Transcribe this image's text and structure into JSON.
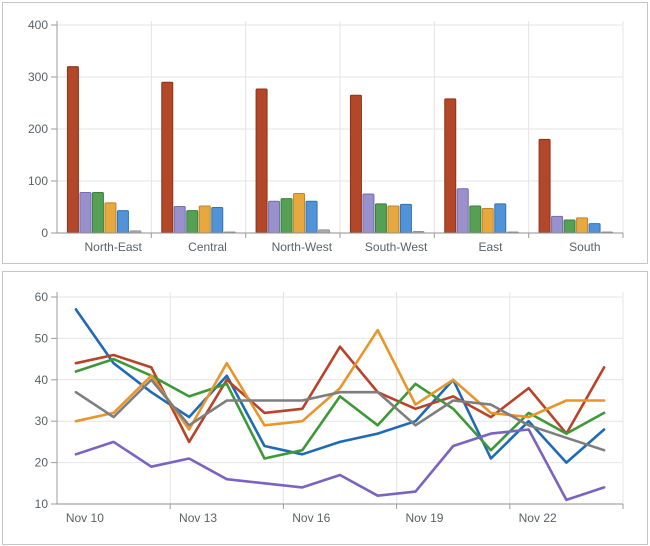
{
  "chart_data": [
    {
      "id": "bar-chart",
      "type": "bar",
      "title": "",
      "xlabel": "",
      "ylabel": "",
      "ylim": [
        0,
        400
      ],
      "yticks": [
        0,
        100,
        200,
        300,
        400
      ],
      "grid": true,
      "legend": "none",
      "categories": [
        "North-East",
        "Central",
        "North-West",
        "South-West",
        "East",
        "South"
      ],
      "series": [
        {
          "name": "red",
          "color": "#b24729",
          "border": "#8e3419",
          "values": [
            320,
            290,
            277,
            265,
            258,
            180
          ]
        },
        {
          "name": "purple",
          "color": "#9991cb",
          "border": "#746bb4",
          "values": [
            78,
            51,
            61,
            75,
            85,
            32
          ]
        },
        {
          "name": "green",
          "color": "#55a054",
          "border": "#398038",
          "values": [
            78,
            43,
            66,
            56,
            52,
            25
          ]
        },
        {
          "name": "orange",
          "color": "#e7a93f",
          "border": "#c08322",
          "values": [
            58,
            52,
            76,
            52,
            47,
            29
          ]
        },
        {
          "name": "blue",
          "color": "#5193d6",
          "border": "#2e72bc",
          "values": [
            43,
            49,
            61,
            55,
            56,
            18
          ]
        },
        {
          "name": "gray",
          "color": "#adadad",
          "border": "#939393",
          "values": [
            4,
            2,
            6,
            3,
            2,
            2
          ]
        }
      ]
    },
    {
      "id": "line-chart",
      "type": "line",
      "title": "",
      "xlabel": "",
      "ylabel": "",
      "ylim": [
        10,
        60
      ],
      "yticks": [
        10,
        20,
        30,
        40,
        50,
        60
      ],
      "grid": true,
      "legend": "none",
      "num_points": 15,
      "label_every": 3,
      "x": [
        "Nov 10",
        "Nov 11",
        "Nov 12",
        "Nov 13",
        "Nov 14",
        "Nov 15",
        "Nov 16",
        "Nov 17",
        "Nov 18",
        "Nov 19",
        "Nov 20",
        "Nov 21",
        "Nov 22",
        "Nov 23",
        "Nov 24"
      ],
      "x_tick_labels": [
        "Nov 10",
        "Nov 13",
        "Nov 16",
        "Nov 19",
        "Nov 22"
      ],
      "series": [
        {
          "name": "blue",
          "color": "#1e6ab6",
          "values": [
            57,
            44,
            37,
            31,
            41,
            24,
            22,
            25,
            27,
            30,
            40,
            21,
            30,
            20,
            28
          ]
        },
        {
          "name": "red",
          "color": "#b8432a",
          "values": [
            44,
            46,
            43,
            25,
            40,
            32,
            33,
            48,
            37,
            33,
            36,
            31,
            38,
            27,
            43
          ]
        },
        {
          "name": "green",
          "color": "#3d9938",
          "values": [
            42,
            45,
            41,
            36,
            39,
            21,
            23,
            36,
            29,
            39,
            33,
            23,
            32,
            27,
            32
          ]
        },
        {
          "name": "orange",
          "color": "#e6962b",
          "values": [
            30,
            32,
            41,
            28,
            44,
            29,
            30,
            38,
            52,
            34,
            40,
            32,
            31,
            35,
            35
          ]
        },
        {
          "name": "gray",
          "color": "#7e7e7e",
          "values": [
            37,
            31,
            40,
            29,
            35,
            35,
            35,
            37,
            37,
            29,
            35,
            34,
            29,
            26,
            23
          ]
        },
        {
          "name": "purple",
          "color": "#7a63c1",
          "values": [
            22,
            25,
            19,
            21,
            16,
            15,
            14,
            17,
            12,
            13,
            24,
            27,
            28,
            11,
            14
          ]
        }
      ]
    }
  ],
  "style": {
    "gridline_color": "#e4e4e4",
    "axis_color": "#9c9c9c",
    "label_color": "#5a6166",
    "panel_border": "#c6c6c6"
  }
}
